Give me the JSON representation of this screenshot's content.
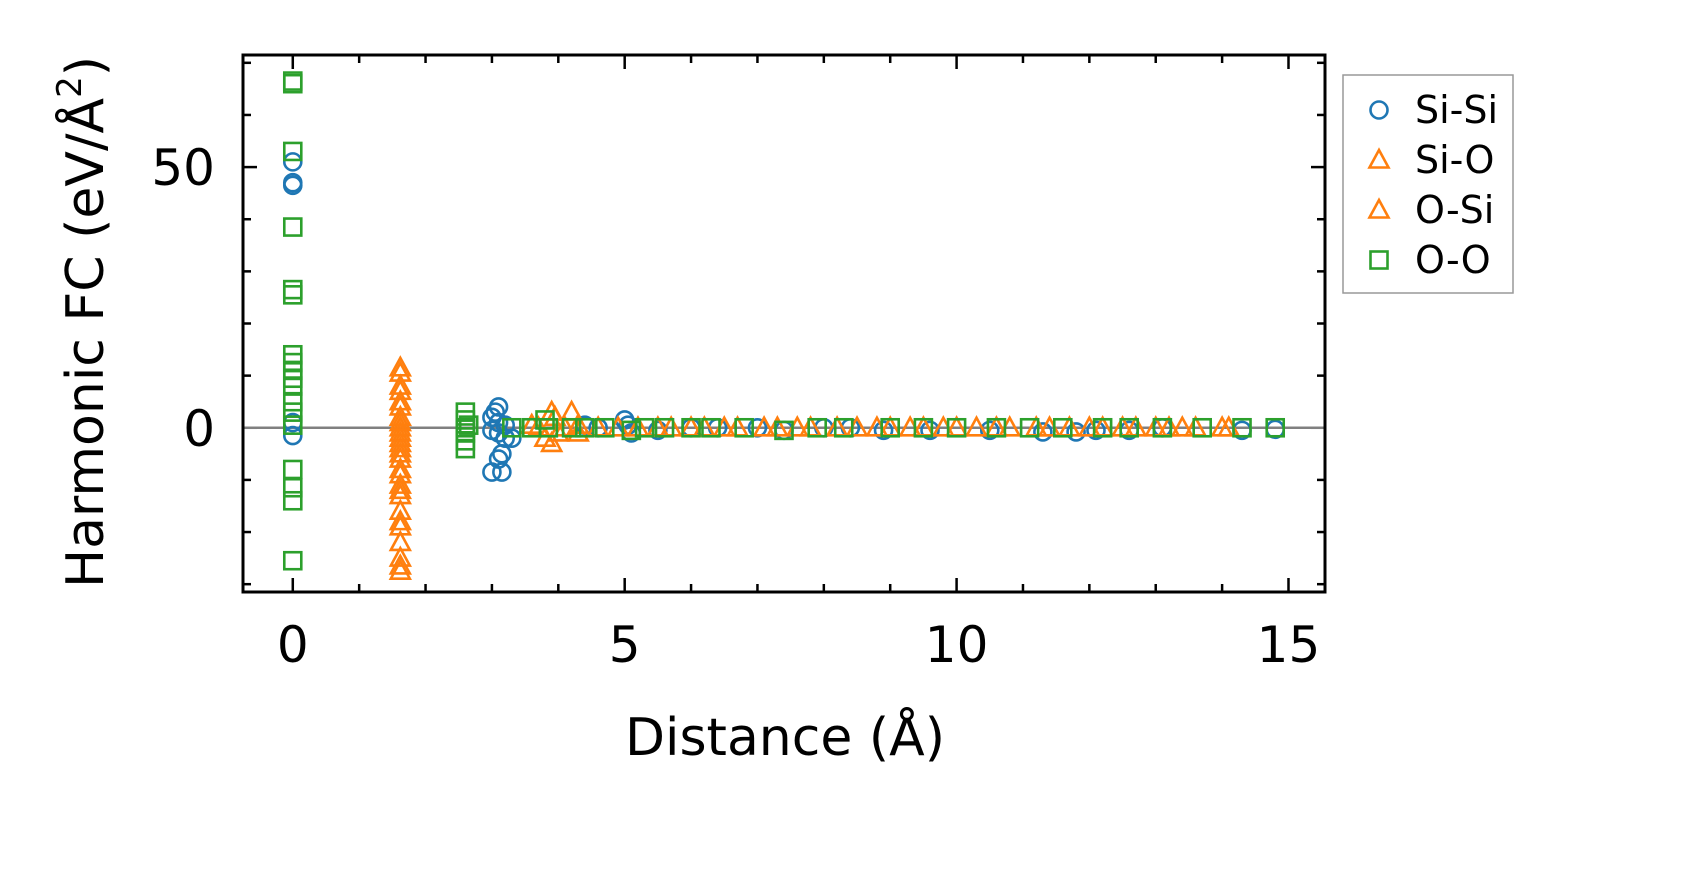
{
  "chart_data": {
    "type": "scatter",
    "title": "",
    "xlabel": "Distance (Å)",
    "ylabel": "Harmonic FC (eV/Å",
    "ylabel_superscript": "2",
    "ylabel_suffix": ")",
    "xlim": [
      -0.75,
      15.55
    ],
    "ylim": [
      -31.5,
      71.5
    ],
    "xticks": [
      0,
      5,
      10,
      15
    ],
    "xtick_labels": [
      "0",
      "5",
      "10",
      "15"
    ],
    "yticks": [
      0,
      50
    ],
    "ytick_labels": [
      "0",
      "50"
    ],
    "x_minor_step": 1,
    "y_minor_step": 10,
    "zero_line": true,
    "grid": false,
    "legend_position": "outside right, top",
    "series": [
      {
        "name": "Si-Si",
        "color": "#1f77b4",
        "marker": "circle",
        "points": [
          [
            0,
            51
          ],
          [
            0,
            47
          ],
          [
            0,
            46.5
          ],
          [
            0,
            1
          ],
          [
            0,
            -1.5
          ],
          [
            3.0,
            -8.5
          ],
          [
            3.15,
            -8.5
          ],
          [
            3.1,
            -6
          ],
          [
            3.15,
            -5
          ],
          [
            3.1,
            4
          ],
          [
            3.05,
            3
          ],
          [
            3.0,
            2
          ],
          [
            3.1,
            1
          ],
          [
            3.2,
            0.5
          ],
          [
            3.1,
            -1
          ],
          [
            3.2,
            -2
          ],
          [
            3.3,
            -2
          ],
          [
            3.0,
            -0.5
          ],
          [
            4.4,
            0.5
          ],
          [
            4.6,
            0
          ],
          [
            5.0,
            1.5
          ],
          [
            5.05,
            0.5
          ],
          [
            5.1,
            -1
          ],
          [
            5.5,
            -0.5
          ],
          [
            6.0,
            0
          ],
          [
            6.4,
            0
          ],
          [
            7.0,
            0
          ],
          [
            7.4,
            -0.5
          ],
          [
            8.0,
            0
          ],
          [
            8.4,
            0
          ],
          [
            8.9,
            -0.5
          ],
          [
            9.6,
            -0.5
          ],
          [
            10.5,
            -0.5
          ],
          [
            11.3,
            -0.8
          ],
          [
            11.8,
            -0.8
          ],
          [
            12.1,
            -0.5
          ],
          [
            12.6,
            -0.5
          ],
          [
            13.1,
            0
          ],
          [
            14.3,
            -0.5
          ],
          [
            14.8,
            -0.3
          ]
        ]
      },
      {
        "name": "Si-O",
        "color": "#ff7f0e",
        "marker": "triangle",
        "points": [
          [
            1.62,
            10.5
          ],
          [
            1.62,
            7
          ],
          [
            1.62,
            5
          ],
          [
            1.62,
            2
          ],
          [
            1.62,
            0
          ],
          [
            1.62,
            -2
          ],
          [
            1.62,
            -3
          ],
          [
            1.62,
            -4
          ],
          [
            1.62,
            -6
          ],
          [
            1.62,
            -8
          ],
          [
            1.62,
            -11
          ],
          [
            1.62,
            -13
          ],
          [
            1.62,
            -16
          ],
          [
            1.62,
            -19
          ],
          [
            1.62,
            -22
          ],
          [
            1.62,
            -26.5
          ],
          [
            1.62,
            -27.5
          ],
          [
            3.7,
            0
          ],
          [
            3.8,
            -2
          ],
          [
            3.9,
            -3
          ],
          [
            3.95,
            2
          ],
          [
            4.1,
            0
          ],
          [
            4.2,
            3
          ],
          [
            4.3,
            -1
          ],
          [
            4.6,
            0
          ],
          [
            5.2,
            0
          ],
          [
            5.7,
            0
          ],
          [
            6.2,
            0
          ],
          [
            6.7,
            0
          ],
          [
            7.3,
            0
          ],
          [
            7.8,
            0
          ],
          [
            8.5,
            0
          ],
          [
            9.0,
            0
          ],
          [
            9.5,
            0
          ],
          [
            10.0,
            0
          ],
          [
            10.6,
            0
          ],
          [
            11.2,
            0
          ],
          [
            11.7,
            0
          ],
          [
            12.2,
            0
          ],
          [
            12.7,
            0
          ],
          [
            13.2,
            0
          ],
          [
            13.6,
            0
          ],
          [
            14.1,
            0
          ]
        ]
      },
      {
        "name": "O-Si",
        "color": "#ff7f0e",
        "marker": "triangle",
        "points": [
          [
            1.62,
            11.5
          ],
          [
            1.62,
            8
          ],
          [
            1.62,
            4
          ],
          [
            1.62,
            1
          ],
          [
            1.62,
            -1
          ],
          [
            1.62,
            -5
          ],
          [
            1.62,
            -9
          ],
          [
            1.62,
            -12
          ],
          [
            1.62,
            -18
          ],
          [
            1.62,
            -25
          ],
          [
            3.6,
            0.5
          ],
          [
            3.9,
            3
          ],
          [
            4.0,
            -1
          ],
          [
            4.3,
            0.5
          ],
          [
            4.9,
            0
          ],
          [
            5.5,
            0
          ],
          [
            6.0,
            0
          ],
          [
            6.5,
            0
          ],
          [
            7.1,
            0
          ],
          [
            7.6,
            0
          ],
          [
            8.2,
            0
          ],
          [
            8.8,
            0
          ],
          [
            9.3,
            0
          ],
          [
            9.8,
            0
          ],
          [
            10.3,
            0
          ],
          [
            10.8,
            0
          ],
          [
            11.4,
            0
          ],
          [
            12.0,
            0
          ],
          [
            12.5,
            0
          ],
          [
            13.0,
            0
          ],
          [
            13.4,
            0
          ],
          [
            14.0,
            0
          ]
        ]
      },
      {
        "name": "O-O",
        "color": "#2ca02c",
        "marker": "square",
        "points": [
          [
            0,
            66.5
          ],
          [
            0,
            66
          ],
          [
            0,
            53
          ],
          [
            0,
            38.5
          ],
          [
            0,
            26.5
          ],
          [
            0,
            25.5
          ],
          [
            0,
            14
          ],
          [
            0,
            12.5
          ],
          [
            0,
            11
          ],
          [
            0,
            9.5
          ],
          [
            0,
            8
          ],
          [
            0,
            5
          ],
          [
            0,
            3
          ],
          [
            0,
            0.5
          ],
          [
            0,
            -8
          ],
          [
            0,
            -11.5
          ],
          [
            0,
            -14
          ],
          [
            0,
            -25.5
          ],
          [
            2.6,
            3
          ],
          [
            2.6,
            1.5
          ],
          [
            2.6,
            0
          ],
          [
            2.6,
            -1
          ],
          [
            2.6,
            -2.5
          ],
          [
            2.6,
            -4
          ],
          [
            2.65,
            0.5
          ],
          [
            3.3,
            0
          ],
          [
            3.6,
            0
          ],
          [
            3.8,
            1.5
          ],
          [
            3.85,
            0
          ],
          [
            4.2,
            0
          ],
          [
            4.4,
            0
          ],
          [
            4.7,
            0
          ],
          [
            5.1,
            -0.5
          ],
          [
            5.3,
            0
          ],
          [
            5.6,
            0
          ],
          [
            6.0,
            0
          ],
          [
            6.3,
            0
          ],
          [
            6.8,
            0
          ],
          [
            7.4,
            -0.5
          ],
          [
            7.9,
            0
          ],
          [
            8.3,
            0
          ],
          [
            9.0,
            0
          ],
          [
            9.5,
            0
          ],
          [
            10.0,
            0
          ],
          [
            10.6,
            0
          ],
          [
            11.1,
            0
          ],
          [
            11.6,
            0
          ],
          [
            12.2,
            0
          ],
          [
            12.6,
            0
          ],
          [
            13.1,
            0
          ],
          [
            13.7,
            0
          ],
          [
            14.3,
            0
          ],
          [
            14.8,
            0
          ]
        ]
      }
    ]
  }
}
